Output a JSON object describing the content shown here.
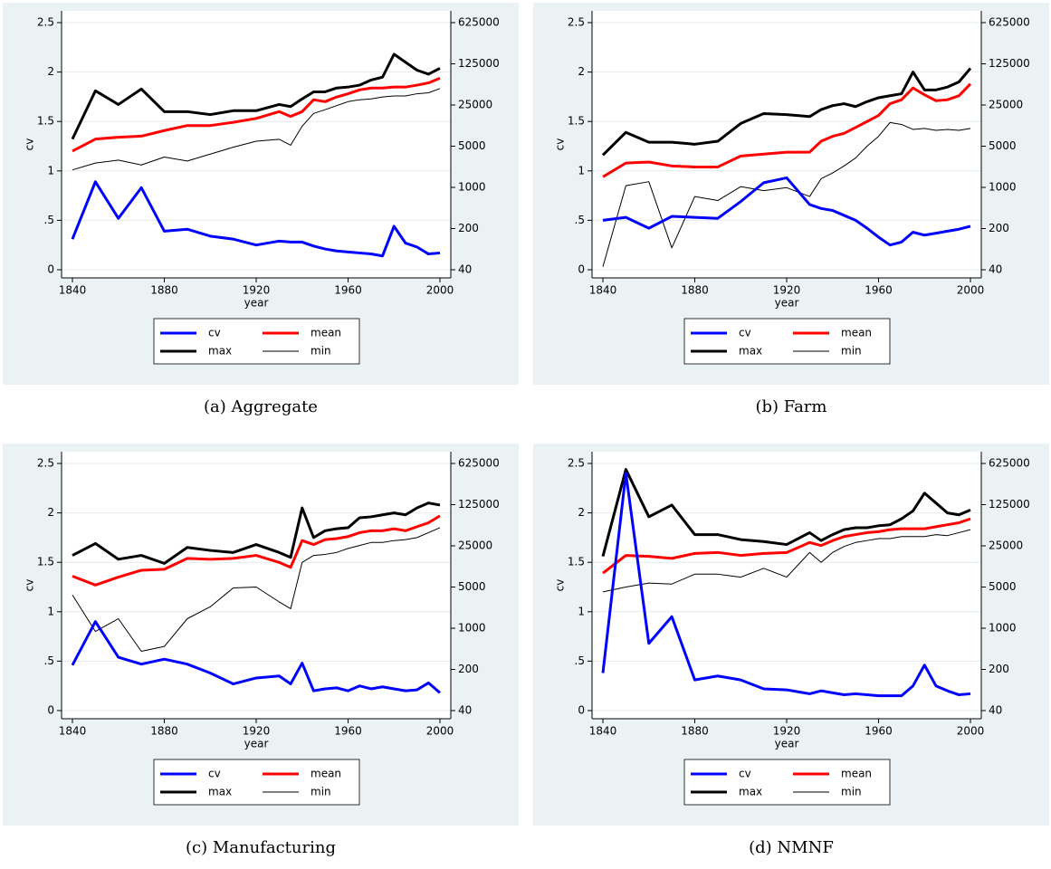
{
  "chart_data": [
    {
      "type": "line",
      "caption": "(a) Aggregate",
      "x_label": "year",
      "y_label": "cv",
      "x": [
        1840,
        1850,
        1860,
        1870,
        1880,
        1890,
        1900,
        1910,
        1920,
        1930,
        1935,
        1940,
        1945,
        1950,
        1955,
        1960,
        1965,
        1970,
        1975,
        1980,
        1985,
        1990,
        1995,
        2000
      ],
      "xlim": [
        1840,
        2000
      ],
      "xticks": [
        1840,
        1880,
        1920,
        1960,
        2000
      ],
      "ylim": [
        0,
        2.5
      ],
      "yticks": [
        0,
        {
          "value": 0.5,
          "label": ".5"
        },
        1,
        1.5,
        2,
        2.5
      ],
      "y2lim": [
        40,
        625000
      ],
      "y2ticks": [
        40,
        200,
        1000,
        5000,
        25000,
        125000,
        625000
      ],
      "y2scale": "log",
      "series": [
        {
          "name": "cv",
          "color": "#0000ff",
          "width": 3,
          "values": [
            0.31,
            0.89,
            0.52,
            0.83,
            0.39,
            0.41,
            0.34,
            0.31,
            0.25,
            0.29,
            0.28,
            0.28,
            0.24,
            0.21,
            0.19,
            0.18,
            0.17,
            0.16,
            0.14,
            0.44,
            0.27,
            0.23,
            0.16,
            0.17
          ]
        },
        {
          "name": "mean",
          "color": "#ff0000",
          "width": 3,
          "axis": "y2",
          "values": [
            4130,
            6600,
            7100,
            7400,
            9200,
            11200,
            11200,
            12700,
            14800,
            19300,
            16000,
            19300,
            30700,
            28500,
            34200,
            38800,
            45100,
            48600,
            48600,
            50400,
            50400,
            54300,
            59300,
            71400
          ]
        },
        {
          "name": "max",
          "color": "#000000",
          "width": 3,
          "axis": "y2",
          "values": [
            6600,
            43500,
            25500,
            46700,
            19300,
            19300,
            17200,
            20000,
            20000,
            25500,
            23500,
            31700,
            41800,
            41800,
            48600,
            50400,
            54300,
            66300,
            74200,
            182000,
            133000,
            97600,
            83500,
            105000
          ]
        },
        {
          "name": "min",
          "color": "#000000",
          "width": 1,
          "axis": "y2",
          "values": [
            1980,
            2590,
            2900,
            2400,
            3270,
            2800,
            3670,
            4800,
            6070,
            6560,
            5200,
            10900,
            18000,
            20800,
            24400,
            28500,
            30700,
            31700,
            34200,
            35600,
            35600,
            38800,
            40300,
            47600
          ]
        }
      ]
    },
    {
      "type": "line",
      "caption": "(b) Farm",
      "x_label": "year",
      "y_label": "cv",
      "x": [
        1840,
        1850,
        1860,
        1870,
        1880,
        1890,
        1900,
        1910,
        1920,
        1930,
        1935,
        1940,
        1945,
        1950,
        1955,
        1960,
        1965,
        1970,
        1975,
        1980,
        1985,
        1990,
        1995,
        2000
      ],
      "xlim": [
        1840,
        2000
      ],
      "xticks": [
        1840,
        1880,
        1920,
        1960,
        2000
      ],
      "ylim": [
        0,
        2.5
      ],
      "yticks": [
        0,
        {
          "value": 0.5,
          "label": ".5"
        },
        1,
        1.5,
        2,
        2.5
      ],
      "y2lim": [
        40,
        625000
      ],
      "y2ticks": [
        40,
        200,
        1000,
        5000,
        25000,
        125000,
        625000
      ],
      "y2scale": "log",
      "series": [
        {
          "name": "cv",
          "color": "#0000ff",
          "width": 3,
          "values": [
            0.5,
            0.53,
            0.42,
            0.54,
            0.53,
            0.52,
            0.69,
            0.88,
            0.93,
            0.66,
            0.62,
            0.6,
            0.55,
            0.5,
            0.42,
            0.33,
            0.25,
            0.28,
            0.38,
            0.35,
            0.37,
            0.39,
            0.41,
            0.44
          ]
        },
        {
          "name": "mean",
          "color": "#ff0000",
          "width": 3,
          "axis": "y2",
          "values": [
            1510,
            2590,
            2690,
            2310,
            2220,
            2220,
            3400,
            3670,
            3960,
            3960,
            6070,
            7360,
            8260,
            10400,
            13100,
            16600,
            26300,
            30700,
            48600,
            37300,
            29600,
            30700,
            35900,
            57000
          ]
        },
        {
          "name": "max",
          "color": "#000000",
          "width": 3,
          "axis": "y2",
          "values": [
            3530,
            8590,
            5840,
            5840,
            5400,
            6070,
            12160,
            17900,
            17200,
            15900,
            20900,
            24400,
            26300,
            23500,
            28500,
            33200,
            35900,
            38800,
            90600,
            45100,
            45100,
            50400,
            61600,
            105000
          ]
        },
        {
          "name": "min",
          "color": "#000000",
          "width": 1,
          "axis": "y2",
          "values": [
            45,
            1070,
            1250,
            94,
            700,
            598,
            1030,
            880,
            990,
            700,
            1400,
            1760,
            2310,
            3150,
            5000,
            7360,
            12600,
            11700,
            9640,
            10000,
            9280,
            9640,
            9280,
            10000
          ]
        }
      ]
    },
    {
      "type": "line",
      "caption": "(c) Manufacturing",
      "x_label": "year",
      "y_label": "cv",
      "x": [
        1840,
        1850,
        1860,
        1870,
        1880,
        1890,
        1900,
        1910,
        1920,
        1930,
        1935,
        1940,
        1945,
        1950,
        1955,
        1960,
        1965,
        1970,
        1975,
        1980,
        1985,
        1990,
        1995,
        2000
      ],
      "xlim": [
        1840,
        2000
      ],
      "xticks": [
        1840,
        1880,
        1920,
        1960,
        2000
      ],
      "ylim": [
        0,
        2.5
      ],
      "yticks": [
        0,
        {
          "value": 0.5,
          "label": ".5"
        },
        1,
        1.5,
        2,
        2.5
      ],
      "y2lim": [
        40,
        625000
      ],
      "y2ticks": [
        40,
        200,
        1000,
        5000,
        25000,
        125000,
        625000
      ],
      "y2scale": "log",
      "series": [
        {
          "name": "cv",
          "color": "#0000ff",
          "width": 3,
          "values": [
            0.46,
            0.9,
            0.54,
            0.47,
            0.52,
            0.47,
            0.38,
            0.27,
            0.33,
            0.35,
            0.27,
            0.48,
            0.2,
            0.22,
            0.23,
            0.2,
            0.25,
            0.22,
            0.24,
            0.22,
            0.2,
            0.21,
            0.28,
            0.18
          ]
        },
        {
          "name": "mean",
          "color": "#ff0000",
          "width": 3,
          "axis": "y2",
          "values": [
            7650,
            5400,
            7360,
            9640,
            10000,
            15300,
            14800,
            15300,
            17200,
            13100,
            10800,
            30700,
            26300,
            31950,
            33200,
            35900,
            41850,
            45100,
            45100,
            48800,
            45100,
            52800,
            61600,
            80700
          ]
        },
        {
          "name": "max",
          "color": "#000000",
          "width": 3,
          "axis": "y2",
          "values": [
            17200,
            27400,
            14800,
            17200,
            12600,
            23500,
            20900,
            19300,
            26300,
            19300,
            15900,
            110000,
            34500,
            45100,
            48800,
            50800,
            74700,
            77700,
            83900,
            90600,
            83900,
            110000,
            133300,
            123000
          ]
        },
        {
          "name": "min",
          "color": "#000000",
          "width": 1,
          "axis": "y2",
          "values": [
            3670,
            880,
            1450,
            406,
            490,
            1450,
            2310,
            4820,
            5000,
            2800,
            2140,
            13100,
            17200,
            17900,
            19300,
            22600,
            25300,
            28500,
            28500,
            30700,
            31950,
            34500,
            41850,
            50800
          ]
        }
      ]
    },
    {
      "type": "line",
      "caption": "(d) NMNF",
      "x_label": "year",
      "y_label": "cv",
      "x": [
        1840,
        1850,
        1860,
        1870,
        1880,
        1890,
        1900,
        1910,
        1920,
        1930,
        1935,
        1940,
        1945,
        1950,
        1955,
        1960,
        1965,
        1970,
        1975,
        1980,
        1985,
        1990,
        1995,
        2000
      ],
      "xlim": [
        1840,
        2000
      ],
      "xticks": [
        1840,
        1880,
        1920,
        1960,
        2000
      ],
      "ylim": [
        0,
        2.5
      ],
      "yticks": [
        0,
        {
          "value": 0.5,
          "label": ".5"
        },
        1,
        1.5,
        2,
        2.5
      ],
      "y2lim": [
        40,
        625000
      ],
      "y2ticks": [
        40,
        200,
        1000,
        5000,
        25000,
        125000,
        625000
      ],
      "y2scale": "log",
      "series": [
        {
          "name": "cv",
          "color": "#0000ff",
          "width": 3,
          "values": [
            0.38,
            2.4,
            0.68,
            0.95,
            0.31,
            0.35,
            0.31,
            0.22,
            0.21,
            0.17,
            0.2,
            0.18,
            0.16,
            0.17,
            0.16,
            0.15,
            0.15,
            0.15,
            0.25,
            0.46,
            0.25,
            0.2,
            0.16,
            0.17
          ]
        },
        {
          "name": "mean",
          "color": "#ff0000",
          "width": 3,
          "axis": "y2",
          "values": [
            8590,
            17200,
            16600,
            15300,
            18600,
            19300,
            17200,
            18600,
            19300,
            28500,
            25300,
            30700,
            35900,
            38800,
            41850,
            43500,
            47000,
            48800,
            48800,
            48800,
            52800,
            57000,
            61600,
            71900
          ]
        },
        {
          "name": "max",
          "color": "#000000",
          "width": 3,
          "axis": "y2",
          "values": [
            16600,
            495000,
            77700,
            123000,
            38800,
            38800,
            31950,
            29600,
            26300,
            41850,
            30700,
            38800,
            47000,
            50800,
            50800,
            54800,
            57000,
            71900,
            97800,
            196000,
            133300,
            90600,
            83900,
            101700
          ]
        },
        {
          "name": "min",
          "color": "#000000",
          "width": 1,
          "axis": "y2",
          "values": [
            4130,
            5000,
            5840,
            5620,
            8260,
            8260,
            7360,
            10400,
            7360,
            19300,
            13100,
            19300,
            24400,
            28500,
            30700,
            33200,
            33200,
            35900,
            35900,
            35900,
            38800,
            37300,
            41850,
            47000
          ]
        }
      ]
    }
  ]
}
